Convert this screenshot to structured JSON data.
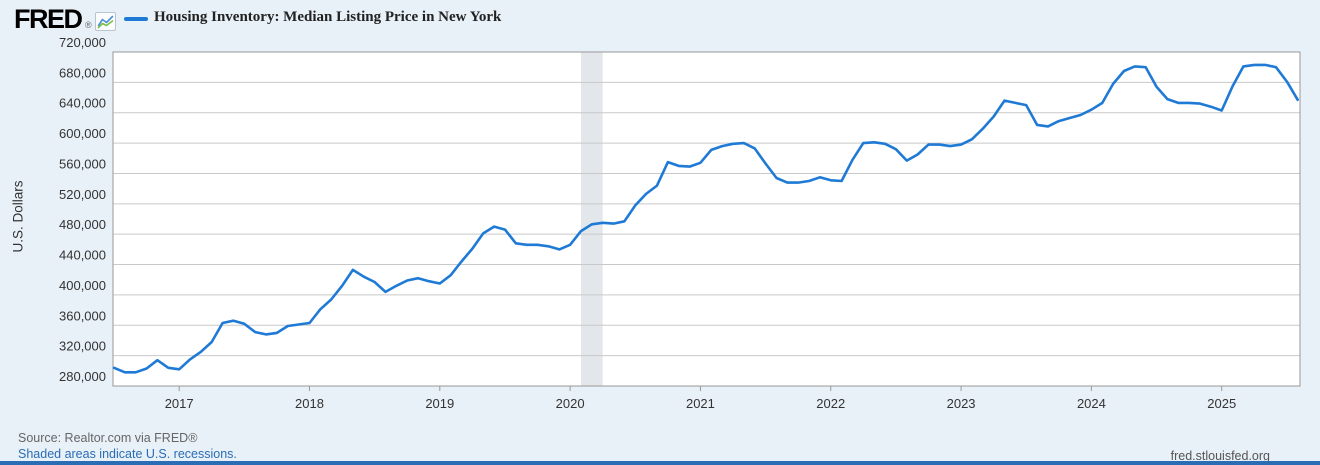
{
  "header": {
    "logo_text": "FRED",
    "logo_reg": "®",
    "series_title": "Housing Inventory: Median Listing Price in New York"
  },
  "footer": {
    "source": "Source: Realtor.com via FRED®",
    "shaded_note": "Shaded areas indicate U.S. recessions.",
    "site": "fred.stlouisfed.org"
  },
  "colors": {
    "page_bg": "#e8f0f8",
    "plot_bg": "#ffffff",
    "grid": "#c9c9c9",
    "border": "#999999",
    "recession": "#e3e7ec",
    "line": "#1f7ad6",
    "tick_text": "#333333",
    "link": "#2a6db5",
    "bottom_bar": "#2a6db5"
  },
  "chart_data": {
    "type": "line",
    "title": "Housing Inventory: Median Listing Price in New York",
    "ylabel": "U.S. Dollars",
    "xlabel": "",
    "frequency": "monthly",
    "x_start": "2016-07",
    "x_end": "2025-08",
    "ylim": [
      280000,
      720000
    ],
    "ytick_step": 40000,
    "grid": "horizontal",
    "legend_position": "top",
    "year_ticks": [
      "2017",
      "2018",
      "2019",
      "2020",
      "2021",
      "2022",
      "2023",
      "2024",
      "2025"
    ],
    "recession_band": {
      "start": "2020-02",
      "end": "2020-04",
      "start_index": 43,
      "end_index": 45
    },
    "values": [
      304000,
      298000,
      298000,
      303000,
      314000,
      304000,
      302000,
      315000,
      325000,
      338000,
      363000,
      366000,
      362000,
      351000,
      348000,
      350000,
      359000,
      361000,
      363000,
      381000,
      394000,
      412000,
      433000,
      424000,
      417000,
      404000,
      412000,
      419000,
      422000,
      418000,
      415000,
      426000,
      444000,
      461000,
      481000,
      490000,
      486000,
      468000,
      466000,
      466000,
      464000,
      460000,
      466000,
      484000,
      493000,
      495000,
      494000,
      497000,
      518000,
      533000,
      544000,
      575000,
      570000,
      569000,
      574000,
      591000,
      596000,
      599000,
      600000,
      593000,
      573000,
      554000,
      548000,
      548000,
      550000,
      555000,
      551000,
      550000,
      578000,
      600000,
      601000,
      599000,
      592000,
      577000,
      585000,
      598000,
      598000,
      596000,
      598000,
      605000,
      619000,
      635000,
      656000,
      653000,
      650000,
      624000,
      622000,
      629000,
      633000,
      637000,
      644000,
      653000,
      678000,
      695000,
      701000,
      700000,
      674000,
      658000,
      653000,
      653000,
      652000,
      648000,
      643000,
      675000,
      701000,
      703000,
      703000,
      700000,
      681000,
      657000
    ]
  }
}
